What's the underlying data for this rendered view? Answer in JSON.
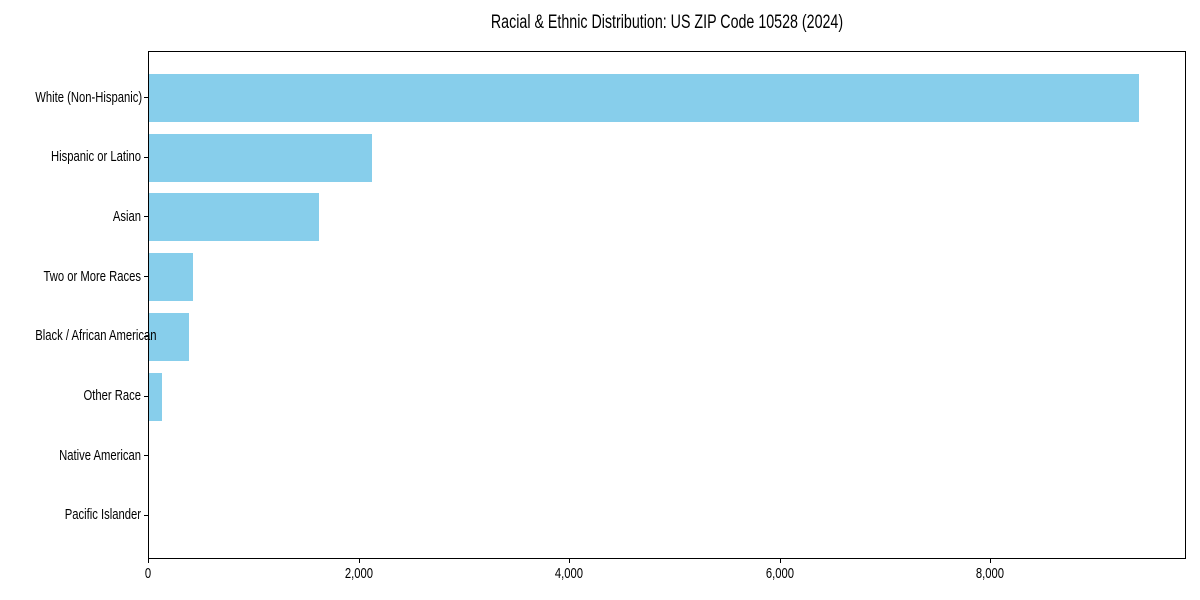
{
  "chart_data": {
    "type": "bar",
    "orientation": "horizontal",
    "title": "Racial & Ethnic Distribution: US ZIP Code 10528 (2024)",
    "categories": [
      "White (Non-Hispanic)",
      "Hispanic or Latino",
      "Asian",
      "Two or More Races",
      "Black / African American",
      "Other Race",
      "Native American",
      "Pacific Islander"
    ],
    "values": [
      9400,
      2120,
      1615,
      420,
      380,
      120,
      0,
      0
    ],
    "xlabel": "",
    "ylabel": "",
    "xlim": [
      0,
      9860
    ],
    "xticks": [
      0,
      2000,
      4000,
      6000,
      8000
    ],
    "xtick_labels": [
      "0",
      "2,000",
      "4,000",
      "6,000",
      "8,000"
    ],
    "bar_color": "#87CEEB",
    "background_color": "#ffffff",
    "spine_color": "#000000",
    "text_color": "#000000",
    "grid": false,
    "legend": "none"
  }
}
